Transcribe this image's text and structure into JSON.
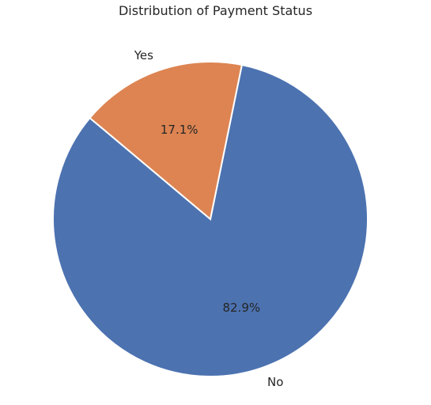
{
  "chart_data": {
    "type": "pie",
    "title": "Distribution of Payment Status",
    "categories": [
      "No",
      "Yes"
    ],
    "values": [
      82.9,
      17.1
    ],
    "value_labels": [
      "82.9%",
      "17.1%"
    ],
    "colors": [
      "#4c72b0",
      "#dd8452"
    ],
    "start_angle_deg": 140,
    "direction": "counterclockwise",
    "legend": "none"
  }
}
